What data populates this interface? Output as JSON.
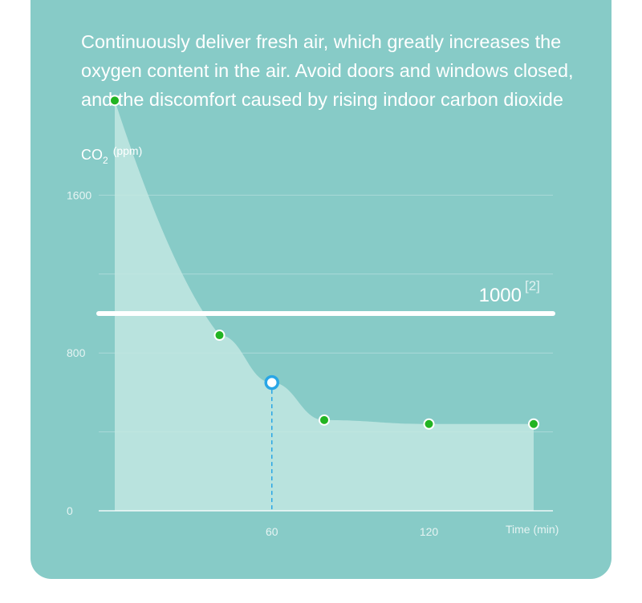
{
  "intro": {
    "lines": [
      "Continuously deliver fresh air, which greatly increases the",
      "oxygen content in the air. Avoid doors and windows closed,",
      "and the discomfort caused by rising indoor carbon dioxide"
    ]
  },
  "colors": {
    "background": "#87cbc7",
    "area_fill": "#c6e8e4",
    "point": "#22b422",
    "highlight": "#29a6e6",
    "threshold_line": "#ffffff"
  },
  "chart_data": {
    "type": "area",
    "ylabel_main": "CO",
    "ylabel_sub": "2",
    "ylabel_unit": "(ppm)",
    "xlabel": "Time (min)",
    "x_ticks": [
      "60",
      "120"
    ],
    "y_ticks": [
      "0",
      "800",
      "1600"
    ],
    "xlim": [
      0,
      160
    ],
    "ylim": [
      0,
      2000
    ],
    "series": [
      {
        "x": [
          0,
          40,
          60,
          80,
          120,
          160
        ],
        "y": [
          2080,
          890,
          650,
          460,
          440,
          440
        ]
      }
    ],
    "highlight_point": {
      "x": 60,
      "y": 650
    },
    "threshold": {
      "value": 1000,
      "label": "1000",
      "note": "[2]"
    },
    "grid": true,
    "grid_y": [
      400,
      1200
    ]
  }
}
